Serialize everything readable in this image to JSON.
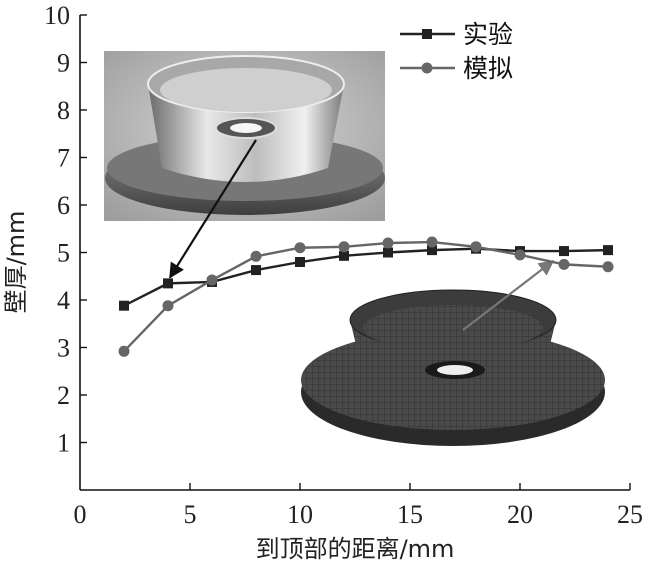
{
  "chart_data": {
    "type": "line",
    "xlabel": "到顶部的距离/mm",
    "ylabel": "壁厚/mm",
    "xlim": [
      0,
      25
    ],
    "ylim": [
      0,
      10
    ],
    "xticks": [
      "0",
      "5",
      "10",
      "15",
      "20",
      "25"
    ],
    "yticks": [
      "1",
      "2",
      "3",
      "4",
      "5",
      "6",
      "7",
      "8",
      "9",
      "10"
    ],
    "grid": false,
    "legend_position": "top-right",
    "series": [
      {
        "name": "实验",
        "marker": "square",
        "color": "#222222",
        "x": [
          2,
          4,
          6,
          8,
          10,
          12,
          14,
          16,
          18,
          20,
          22,
          24
        ],
        "values": [
          3.88,
          4.35,
          4.38,
          4.63,
          4.8,
          4.93,
          5.0,
          5.05,
          5.08,
          5.03,
          5.03,
          5.05
        ]
      },
      {
        "name": "模拟",
        "marker": "circle",
        "color": "#666666",
        "x": [
          2,
          4,
          6,
          8,
          10,
          12,
          14,
          16,
          18,
          20,
          22,
          24
        ],
        "values": [
          2.92,
          3.88,
          4.42,
          4.92,
          5.1,
          5.12,
          5.2,
          5.22,
          5.12,
          4.95,
          4.75,
          4.7
        ]
      }
    ],
    "annotations": [
      {
        "label": "photo-inset",
        "points_to_x": 4,
        "points_to_y": 4.35
      },
      {
        "label": "mesh-inset",
        "points_to_x": 21.5,
        "points_to_y": 4.82
      }
    ]
  }
}
